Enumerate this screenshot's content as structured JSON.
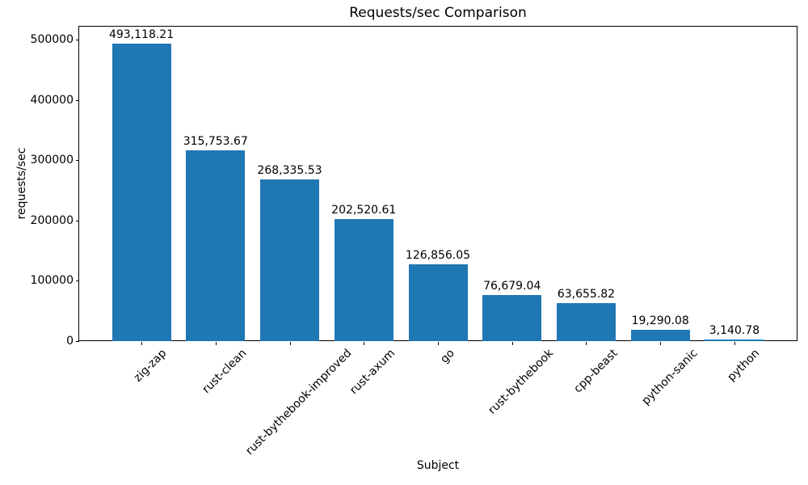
{
  "chart_data": {
    "type": "bar",
    "title": "Requests/sec Comparison",
    "xlabel": "Subject",
    "ylabel": "requests/sec",
    "categories": [
      "zig-zap",
      "rust-clean",
      "rust-bythebook-improved",
      "rust-axum",
      "go",
      "rust-bythebook",
      "cpp-beast",
      "python-sanic",
      "python"
    ],
    "values": [
      493118.21,
      315753.67,
      268335.53,
      202520.61,
      126856.05,
      76679.04,
      63655.82,
      19290.08,
      3140.78
    ],
    "bar_labels": [
      "493,118.21",
      "315,753.67",
      "268,335.53",
      "202,520.61",
      "126,856.05",
      "76,679.04",
      "63,655.82",
      "19,290.08",
      "3,140.78"
    ],
    "bar_color": "#1f77b4",
    "axis_color": "#000000",
    "text_color": "#000000",
    "ylim": [
      0,
      521448
    ],
    "yticks": [
      0,
      100000,
      200000,
      300000,
      400000,
      500000
    ],
    "ytick_labels": [
      "0",
      "100000",
      "200000",
      "300000",
      "400000",
      "500000"
    ],
    "xtick_rotation": 45,
    "grid": false,
    "legend": null
  }
}
